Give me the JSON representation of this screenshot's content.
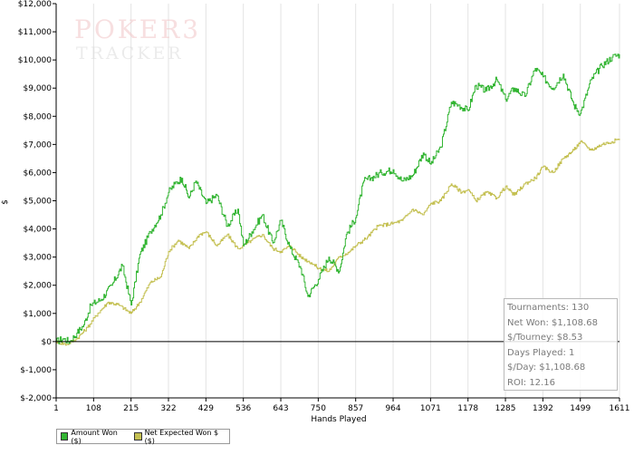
{
  "logo": {
    "line1": "POKER3",
    "line2": "TRACKER"
  },
  "colors": {
    "amount_won": "#33b533",
    "net_expected": "#c4c052",
    "axis": "#000000",
    "grid": "#e3e3e3"
  },
  "chart_data": {
    "type": "line",
    "xlabel": "Hands Played",
    "ylabel": "$",
    "xlim": [
      1,
      1611
    ],
    "ylim": [
      -2000,
      12000
    ],
    "x_ticks": [
      1,
      108,
      215,
      322,
      429,
      536,
      643,
      750,
      857,
      964,
      1071,
      1178,
      1285,
      1392,
      1499,
      1611
    ],
    "y_ticks": [
      {
        "value": -2000,
        "label": "$-2,000"
      },
      {
        "value": -1000,
        "label": "$-1,000"
      },
      {
        "value": 0,
        "label": "$0"
      },
      {
        "value": 1000,
        "label": "$1,000"
      },
      {
        "value": 2000,
        "label": "$2,000"
      },
      {
        "value": 3000,
        "label": "$3,000"
      },
      {
        "value": 4000,
        "label": "$4,000"
      },
      {
        "value": 5000,
        "label": "$5,000"
      },
      {
        "value": 6000,
        "label": "$6,000"
      },
      {
        "value": 7000,
        "label": "$7,000"
      },
      {
        "value": 8000,
        "label": "$8,000"
      },
      {
        "value": 9000,
        "label": "$9,000"
      },
      {
        "value": 10000,
        "label": "$10,000"
      },
      {
        "value": 11000,
        "label": "$11,000"
      },
      {
        "value": 12000,
        "label": "$12,000"
      }
    ],
    "grid": "vertical",
    "legend_position": "bottom-left",
    "series": [
      {
        "name": "Amount Won ($)",
        "x": [
          1,
          20,
          40,
          60,
          80,
          100,
          130,
          160,
          190,
          215,
          240,
          270,
          300,
          322,
          340,
          360,
          380,
          400,
          429,
          460,
          490,
          520,
          536,
          560,
          590,
          620,
          643,
          670,
          700,
          720,
          750,
          780,
          810,
          830,
          857,
          880,
          900,
          930,
          964,
          990,
          1020,
          1050,
          1071,
          1100,
          1130,
          1150,
          1178,
          1200,
          1230,
          1260,
          1285,
          1310,
          1340,
          1370,
          1392,
          1420,
          1450,
          1480,
          1499,
          1530,
          1560,
          1590,
          1611
        ],
        "y": [
          0,
          100,
          0,
          300,
          600,
          1300,
          1500,
          2000,
          2700,
          1300,
          3100,
          3900,
          4500,
          5300,
          5600,
          5800,
          5100,
          5700,
          4900,
          5200,
          4100,
          4700,
          3400,
          3900,
          4500,
          3500,
          4300,
          3300,
          2600,
          1600,
          2200,
          3000,
          2500,
          3800,
          4400,
          5700,
          5800,
          6000,
          6100,
          5700,
          5900,
          6700,
          6300,
          6900,
          8500,
          8400,
          8200,
          9100,
          8900,
          9300,
          8600,
          9000,
          8700,
          9700,
          9400,
          9000,
          9500,
          8400,
          8100,
          9300,
          9800,
          10100,
          10200
        ]
      },
      {
        "name": "Net Expected Won $ ($)",
        "x": [
          1,
          30,
          60,
          90,
          120,
          150,
          180,
          215,
          240,
          270,
          300,
          322,
          350,
          380,
          410,
          429,
          460,
          490,
          520,
          536,
          560,
          590,
          620,
          643,
          670,
          700,
          730,
          750,
          780,
          810,
          840,
          857,
          890,
          920,
          964,
          990,
          1020,
          1050,
          1071,
          1100,
          1130,
          1160,
          1178,
          1200,
          1230,
          1260,
          1285,
          1310,
          1340,
          1370,
          1392,
          1420,
          1450,
          1480,
          1499,
          1530,
          1560,
          1590,
          1611
        ],
        "y": [
          0,
          -100,
          100,
          500,
          1000,
          1400,
          1300,
          1000,
          1400,
          2100,
          2300,
          3200,
          3600,
          3300,
          3800,
          3900,
          3400,
          3800,
          3300,
          3400,
          3600,
          3800,
          3300,
          3200,
          3400,
          3000,
          2800,
          2600,
          2500,
          3000,
          3200,
          3400,
          3700,
          4100,
          4200,
          4300,
          4700,
          4500,
          4900,
          5000,
          5600,
          5300,
          5400,
          5000,
          5300,
          5100,
          5500,
          5200,
          5600,
          5800,
          6200,
          6000,
          6500,
          6800,
          7100,
          6800,
          7000,
          7100,
          7200
        ]
      }
    ]
  },
  "stats": [
    "Tournaments: 130",
    "Net Won: $1,108.68",
    "$/Tourney: $8.53",
    "Days Played: 1",
    "$/Day: $1,108.68",
    "ROI: 12.16"
  ]
}
